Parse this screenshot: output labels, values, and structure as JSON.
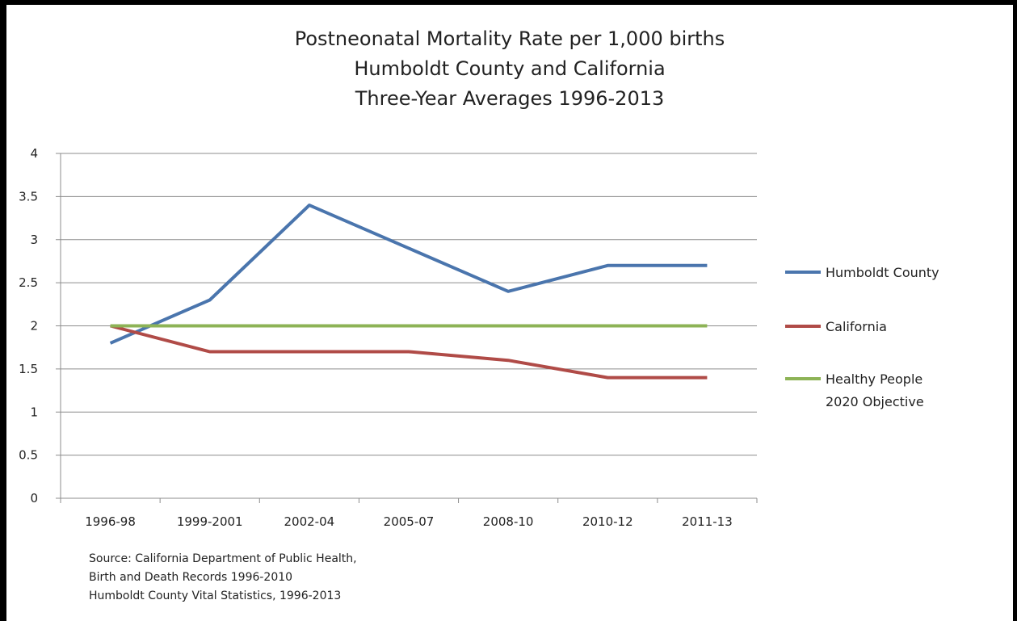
{
  "chart_data": {
    "type": "line",
    "title": [
      "Postneonatal Mortality Rate per 1,000 births",
      "Humboldt County and California",
      "Three-Year Averages 1996-2013"
    ],
    "categories": [
      "1996-98",
      "1999-2001",
      "2002-04",
      "2005-07",
      "2008-10",
      "2010-12",
      "2011-13"
    ],
    "ylim": [
      0,
      4
    ],
    "yticks": [
      "0",
      "0.5",
      "1",
      "1.5",
      "2",
      "2.5",
      "3",
      "3.5",
      "4"
    ],
    "grid": true,
    "legend_position": "right",
    "series": [
      {
        "name": "Humboldt County",
        "values": [
          1.8,
          2.3,
          3.4,
          2.9,
          2.4,
          2.7,
          2.7
        ],
        "color": "#4a75ad"
      },
      {
        "name": "California",
        "values": [
          2.0,
          1.7,
          1.7,
          1.7,
          1.6,
          1.4,
          1.4
        ],
        "color": "#b04b47"
      },
      {
        "name": [
          "Healthy People",
          "2020 Objective"
        ],
        "values": [
          2,
          2,
          2,
          2,
          2,
          2,
          2
        ],
        "color": "#8db356"
      }
    ],
    "source": [
      "Source:  California Department of Public Health,",
      "Birth and Death Records 1996-2010",
      "Humboldt County Vital Statistics, 1996-2013"
    ]
  }
}
